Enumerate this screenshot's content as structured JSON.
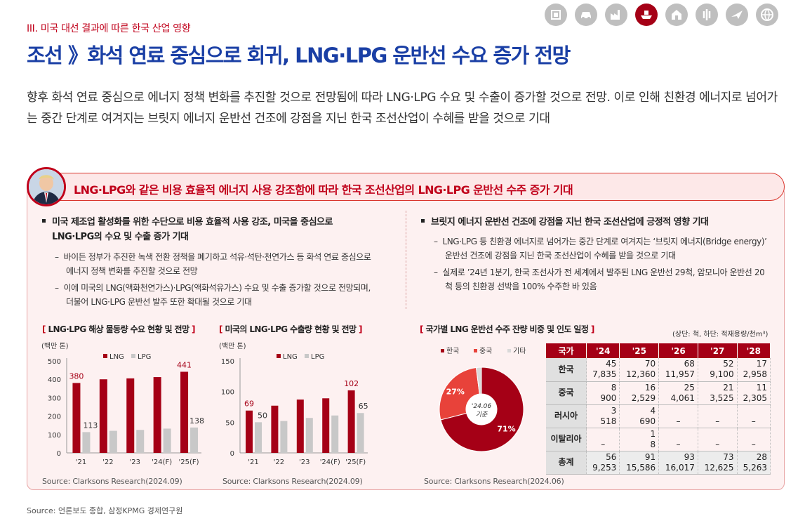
{
  "header": {
    "section_label": "III. 미국 대선 결과에 따른 한국 산업 영향",
    "title": "조선 》화석 연료 중심으로 회귀, LNG·LPG 운반선 수요 증가 전망"
  },
  "industry_icons": [
    {
      "icon": "chip-icon",
      "active": false
    },
    {
      "icon": "car-icon",
      "active": false
    },
    {
      "icon": "factory-icon",
      "active": false
    },
    {
      "icon": "ship-icon",
      "active": true
    },
    {
      "icon": "building-icon",
      "active": false
    },
    {
      "icon": "grain-icon",
      "active": false
    },
    {
      "icon": "airplane-icon",
      "active": false
    },
    {
      "icon": "globe-icon",
      "active": false
    }
  ],
  "intro": "향후 화석 연료 중심으로 에너지 정책 변화를 추진할 것으로 전망됨에 따라 LNG·LPG 수요 및 수출이 증가할 것으로 전망. 이로 인해 친환경 에너지로 넘어가는 중간 단계로 여겨지는 브릿지 에너지 운반선 건조에 강점을 지닌 한국 조선산업이 수혜를 받을 것으로 기대",
  "headline": "LNG·LPG와 같은 비용 효율적 에너지 사용 강조함에 따라 한국 조선산업의 LNG·LPG 운반선 수주 증가 기대",
  "left_points": {
    "head": "미국 제조업 활성화를 위한 수단으로 비용 효율적 사용 강조, 미국을 중심으로 LNG·LPG의 수요 및 수출 증가 기대",
    "sub1": "바이든 정부가 추진한 녹색 전환 정책을 폐기하고 석유·석탄·천연가스 등 화석 연료 중심으로 에너지 정책 변화를 추진할 것으로 전망",
    "sub2": "이에 미국의 LNG(액화천연가스)·LPG(액화석유가스) 수요 및 수출 증가할 것으로 전망되며, 더불어 LNG·LPG 운반선 발주 또한 확대될 것으로 기대"
  },
  "right_points": {
    "head": "브릿지 에너지 운반선 건조에 강점을 지닌 한국 조선산업에 긍정적 영향 기대",
    "sub1": "LNG·LPG 등 친환경 에너지로 넘어가는 중간 단계로 여겨지는 ‘브릿지 에너지(Bridge energy)’ 운반선 건조에 강점을 지닌 한국 조선산업이 수혜를 받을 것으로 기대",
    "sub2": "실제로 ’24년 1분기, 한국 조선사가 전 세계에서 발주된 LNG 운반선 29척, 암모니아 운반선 20척 등의 친환경 선박을 100% 수주한 바 있음"
  },
  "colors": {
    "lng": "#a50016",
    "lpg": "#c8c8c8",
    "china": "#e8423a",
    "other": "#d9d9d9",
    "brand_blue": "#1a3fa5"
  },
  "chart_data": [
    {
      "type": "bar",
      "title": "LNG·LPG 해상 물동량 수요 현황 및 전망",
      "ylabel": "(백만 톤)",
      "categories": [
        "'21",
        "'22",
        "'23",
        "'24(F)",
        "'25(F)"
      ],
      "series": [
        {
          "name": "LNG",
          "values": [
            380,
            400,
            405,
            412,
            441
          ]
        },
        {
          "name": "LPG",
          "values": [
            113,
            120,
            125,
            132,
            138
          ]
        }
      ],
      "data_labels": {
        "LNG": {
          "0": "380",
          "4": "441"
        },
        "LPG": {
          "0": "113",
          "4": "138"
        }
      },
      "yticks": [
        0,
        100,
        200,
        300,
        400,
        500
      ],
      "ylim": [
        0,
        500
      ],
      "legend": "top",
      "source": "Source: Clarksons Research(2024.09)"
    },
    {
      "type": "bar",
      "title": "미국의 LNG·LPG 수출량 현황 및 전망",
      "ylabel": "(백만 톤)",
      "categories": [
        "'21",
        "'22",
        "'23",
        "'24(F)",
        "'25(F)"
      ],
      "series": [
        {
          "name": "LNG",
          "values": [
            69,
            77,
            87,
            89,
            102
          ]
        },
        {
          "name": "LPG",
          "values": [
            50,
            52,
            57,
            61,
            65
          ]
        }
      ],
      "data_labels": {
        "LNG": {
          "0": "69",
          "4": "102"
        },
        "LPG": {
          "0": "50",
          "4": "65"
        }
      },
      "yticks": [
        0,
        50,
        100,
        150
      ],
      "ylim": [
        0,
        150
      ],
      "legend": "top",
      "source": "Source: Clarksons Research(2024.09)"
    },
    {
      "type": "pie",
      "title": "국가별 LNG 운반선 수주 잔량 비중 및 인도 일정",
      "center_label": [
        "'24.06",
        "기준"
      ],
      "slices": [
        {
          "name": "한국",
          "value": 71,
          "label": "71%"
        },
        {
          "name": "중국",
          "value": 27,
          "label": "27%"
        },
        {
          "name": "기타",
          "value": 2,
          "label": ""
        }
      ],
      "legend": "top-left",
      "source": "Source: Clarksons Research(2024.06)"
    },
    {
      "type": "table",
      "unit": "(상단: 척, 하단: 적재용량/천m³)",
      "columns": [
        "국가",
        "'24",
        "'25",
        "'26",
        "'27",
        "'28"
      ],
      "rows": [
        {
          "name": "한국",
          "top": [
            "45",
            "70",
            "68",
            "52",
            "17"
          ],
          "bottom": [
            "7,835",
            "12,360",
            "11,957",
            "9,100",
            "2,958"
          ]
        },
        {
          "name": "중국",
          "top": [
            "8",
            "16",
            "25",
            "21",
            "11"
          ],
          "bottom": [
            "900",
            "2,529",
            "4,061",
            "3,525",
            "2,305"
          ]
        },
        {
          "name": "러시아",
          "top": [
            "3",
            "4",
            "",
            "",
            ""
          ],
          "bottom": [
            "518",
            "690",
            "–",
            "–",
            "–"
          ]
        },
        {
          "name": "이탈리아",
          "top": [
            "",
            "1",
            "",
            "",
            ""
          ],
          "bottom": [
            "–",
            "8",
            "–",
            "–",
            "–"
          ]
        },
        {
          "name": "총계",
          "top": [
            "56",
            "91",
            "93",
            "73",
            "28"
          ],
          "bottom": [
            "9,253",
            "15,586",
            "16,017",
            "12,625",
            "5,263"
          ]
        }
      ]
    }
  ],
  "footer": {
    "source": "Source: 언론보도 종합, 삼정KPMG 경제연구원"
  }
}
